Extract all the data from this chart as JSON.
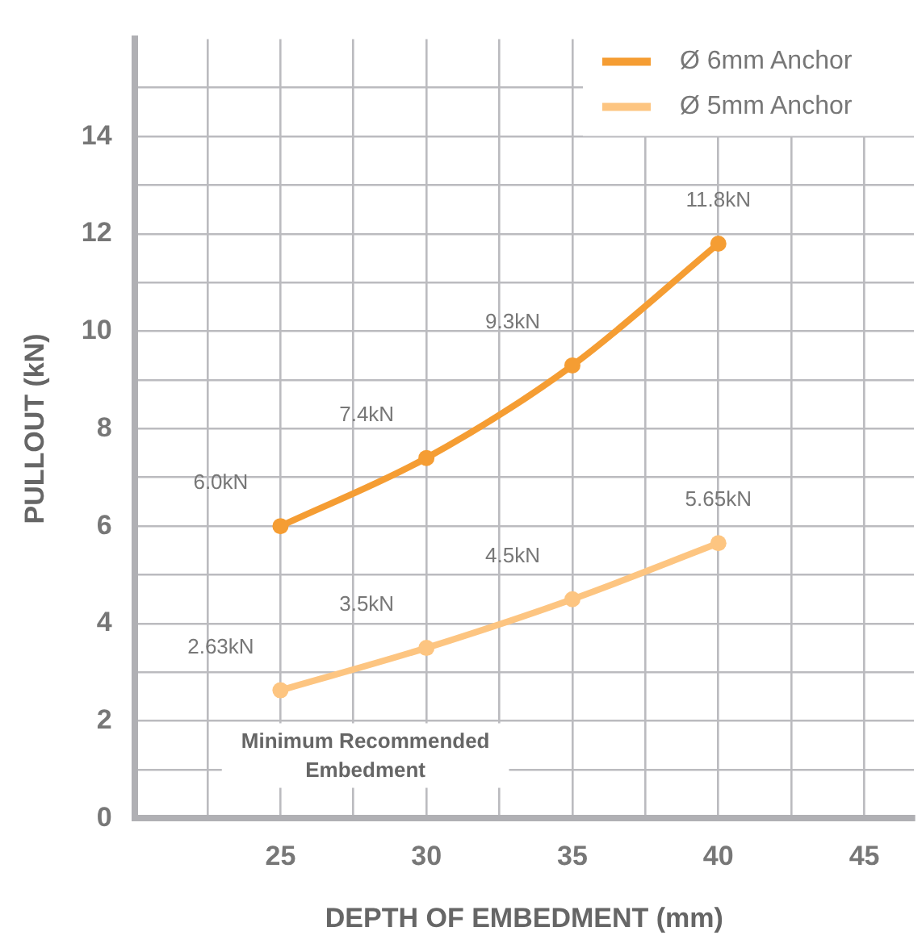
{
  "chart_data": {
    "type": "line",
    "xlabel": "DEPTH OF EMBEDMENT (mm)",
    "ylabel": "PULLOUT (kN)",
    "x": [
      25,
      30,
      35,
      40
    ],
    "series": [
      {
        "name": "Ø 6mm Anchor",
        "color": "#f59d33",
        "values": [
          6.0,
          7.4,
          9.3,
          11.8
        ],
        "value_labels": [
          "6.0kN",
          "7.4kN",
          "9.3kN",
          "11.8kN"
        ]
      },
      {
        "name": "Ø 5mm Anchor",
        "color": "#fdc581",
        "values": [
          2.63,
          3.5,
          4.5,
          5.65
        ],
        "value_labels": [
          "2.63kN",
          "3.5kN",
          "4.5kN",
          "5.65kN"
        ]
      }
    ],
    "xlim": [
      20,
      46.7
    ],
    "xticks": [
      {
        "value": 22.5,
        "label": null
      },
      25,
      {
        "value": 27.5,
        "label": null
      },
      30,
      {
        "value": 32.5,
        "label": null
      },
      35,
      {
        "value": 37.5,
        "label": null
      },
      40,
      {
        "value": 42.5,
        "label": null
      },
      45
    ],
    "ylim": [
      0,
      16
    ],
    "yticks": [
      0,
      {
        "value": 1,
        "label": null
      },
      2,
      {
        "value": 3,
        "label": null
      },
      4,
      {
        "value": 5,
        "label": null
      },
      6,
      {
        "value": 7,
        "label": null
      },
      8,
      {
        "value": 9,
        "label": null
      },
      10,
      {
        "value": 11,
        "label": null
      },
      12,
      {
        "value": 13,
        "label": null
      },
      14,
      {
        "value": 15,
        "label": null
      }
    ],
    "annotations": [
      "Minimum Recommended Embedment"
    ],
    "grid": true,
    "legend": "top right",
    "marker": "circle",
    "line_style": "solid"
  }
}
